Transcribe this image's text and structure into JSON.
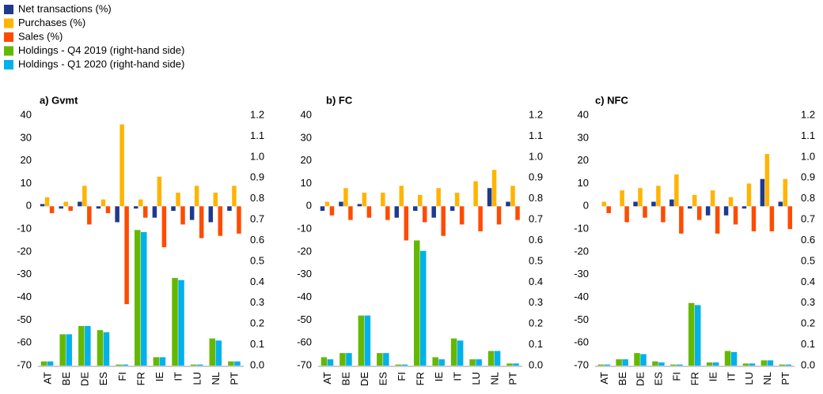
{
  "chart_data": [
    {
      "type": "bar",
      "title": "a) Gvmt",
      "categories": [
        "AT",
        "BE",
        "DE",
        "ES",
        "FI",
        "FR",
        "IE",
        "IT",
        "LU",
        "NL",
        "PT"
      ],
      "series": [
        {
          "name": "Net transactions (%)",
          "color": "#1d3a8f",
          "values": [
            1,
            -1,
            2,
            -1,
            -7,
            -1,
            -5,
            -2,
            -6,
            -7,
            -2
          ]
        },
        {
          "name": "Purchases (%)",
          "color": "#ffb400",
          "values": [
            4,
            2,
            9,
            3,
            36,
            3,
            13,
            6,
            9,
            6,
            9
          ]
        },
        {
          "name": "Sales (%)",
          "color": "#ff4b00",
          "values": [
            -3,
            -2,
            -8,
            -3,
            -43,
            -5,
            -18,
            -8,
            -14,
            -13,
            -12
          ]
        },
        {
          "name": "Holdings - Q4 2019 (right-hand side)",
          "color": "#65b800",
          "axis": "y2",
          "values": [
            0.02,
            0.15,
            0.19,
            0.17,
            0.005,
            0.65,
            0.04,
            0.42,
            0.005,
            0.13,
            0.02
          ]
        },
        {
          "name": "Holdings - Q1 2020 (right-hand side)",
          "color": "#00b1ea",
          "axis": "y2",
          "values": [
            0.02,
            0.15,
            0.19,
            0.16,
            0.005,
            0.64,
            0.04,
            0.41,
            0.005,
            0.12,
            0.02
          ]
        }
      ],
      "ylim": [
        -70,
        40
      ],
      "yticks": [
        -70,
        -60,
        -50,
        -40,
        -30,
        -20,
        -10,
        0,
        10,
        20,
        30,
        40
      ],
      "y2lim": [
        0,
        1.2
      ],
      "y2ticks": [
        {
          "value": 0,
          "label": "0.0"
        },
        0.1,
        0.2,
        0.3,
        0.4,
        0.5,
        0.6,
        0.7,
        0.8,
        0.9,
        {
          "value": 1,
          "label": "1.0"
        },
        1.1,
        1.2
      ]
    },
    {
      "type": "bar",
      "title": "b) FC",
      "categories": [
        "AT",
        "BE",
        "DE",
        "ES",
        "FI",
        "FR",
        "IE",
        "IT",
        "LU",
        "NL",
        "PT"
      ],
      "series": [
        {
          "name": "Net transactions (%)",
          "color": "#1d3a8f",
          "values": [
            -2,
            2,
            1,
            0,
            -5,
            -2,
            -5,
            -2,
            0,
            8,
            2
          ]
        },
        {
          "name": "Purchases (%)",
          "color": "#ffb400",
          "values": [
            2,
            8,
            6,
            6,
            9,
            5,
            8,
            6,
            11,
            16,
            9
          ]
        },
        {
          "name": "Sales (%)",
          "color": "#ff4b00",
          "values": [
            -4,
            -6,
            -5,
            -6,
            -15,
            -7,
            -13,
            -8,
            -11,
            -8,
            -6
          ]
        },
        {
          "name": "Holdings - Q4 2019 (right-hand side)",
          "color": "#65b800",
          "axis": "y2",
          "values": [
            0.04,
            0.06,
            0.24,
            0.06,
            0.005,
            0.6,
            0.04,
            0.13,
            0.03,
            0.07,
            0.01
          ]
        },
        {
          "name": "Holdings - Q1 2020 (right-hand side)",
          "color": "#00b1ea",
          "axis": "y2",
          "values": [
            0.03,
            0.06,
            0.24,
            0.06,
            0.005,
            0.55,
            0.03,
            0.12,
            0.03,
            0.07,
            0.01
          ]
        }
      ],
      "ylim": [
        -70,
        40
      ],
      "yticks": [
        -70,
        -60,
        -50,
        -40,
        -30,
        -20,
        -10,
        0,
        10,
        20,
        30,
        40
      ],
      "y2lim": [
        0,
        1.2
      ],
      "y2ticks": [
        {
          "value": 0,
          "label": "0.0"
        },
        0.1,
        0.2,
        0.3,
        0.4,
        0.5,
        0.6,
        0.7,
        0.8,
        0.9,
        {
          "value": 1,
          "label": "1.0"
        },
        1.1,
        1.2
      ]
    },
    {
      "type": "bar",
      "title": "c) NFC",
      "categories": [
        "AT",
        "BE",
        "DE",
        "ES",
        "FI",
        "FR",
        "IE",
        "IT",
        "LU",
        "NL",
        "PT"
      ],
      "series": [
        {
          "name": "Net transactions (%)",
          "color": "#1d3a8f",
          "values": [
            0,
            0,
            2,
            2,
            3,
            -1,
            -4,
            -4,
            -1,
            12,
            2
          ]
        },
        {
          "name": "Purchases (%)",
          "color": "#ffb400",
          "values": [
            2,
            7,
            8,
            9,
            14,
            5,
            7,
            4,
            10,
            23,
            12
          ]
        },
        {
          "name": "Sales (%)",
          "color": "#ff4b00",
          "values": [
            -3,
            -7,
            -5,
            -7,
            -12,
            -6,
            -12,
            -8,
            -11,
            -11,
            -10
          ]
        },
        {
          "name": "Holdings - Q4 2019 (right-hand side)",
          "color": "#65b800",
          "axis": "y2",
          "values": [
            0.005,
            0.03,
            0.06,
            0.02,
            0.005,
            0.3,
            0.015,
            0.07,
            0.01,
            0.025,
            0.005
          ]
        },
        {
          "name": "Holdings - Q1 2020 (right-hand side)",
          "color": "#00b1ea",
          "axis": "y2",
          "values": [
            0.005,
            0.03,
            0.055,
            0.015,
            0.005,
            0.29,
            0.015,
            0.065,
            0.01,
            0.025,
            0.005
          ]
        }
      ],
      "ylim": [
        -70,
        40
      ],
      "yticks": [
        -70,
        -60,
        -50,
        -40,
        -30,
        -20,
        -10,
        0,
        10,
        20,
        30,
        40
      ],
      "y2lim": [
        0,
        1.2
      ],
      "y2ticks": [
        {
          "value": 0,
          "label": "0.0"
        },
        0.1,
        0.2,
        0.3,
        0.4,
        0.5,
        0.6,
        0.7,
        0.8,
        0.9,
        {
          "value": 1,
          "label": "1.0"
        },
        1.1,
        1.2
      ]
    }
  ]
}
